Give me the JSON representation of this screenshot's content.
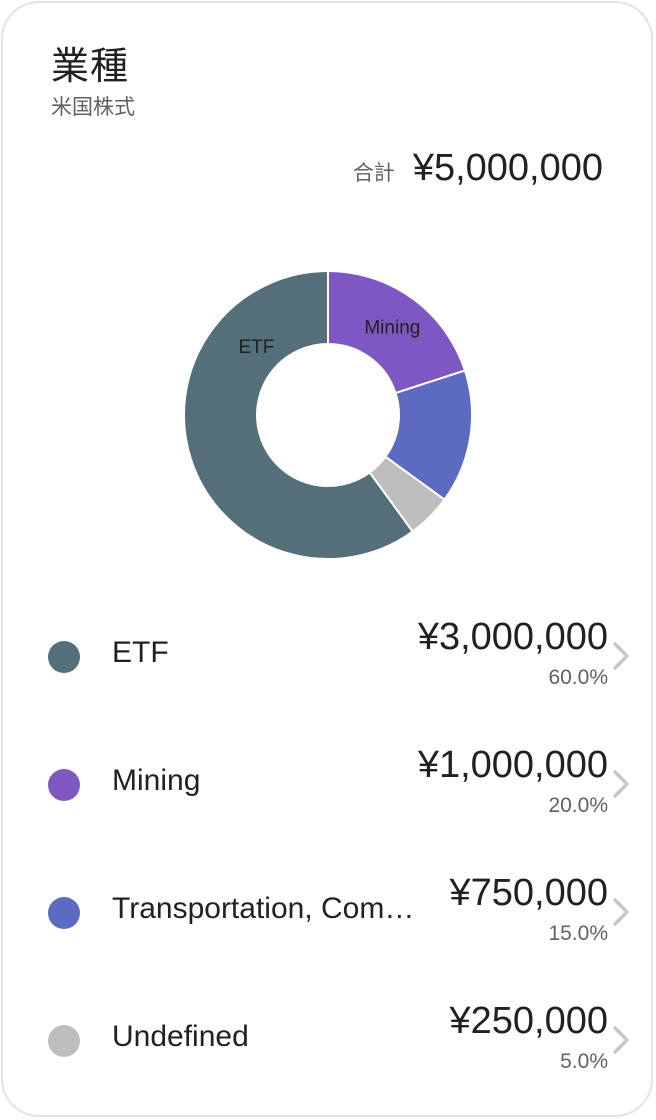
{
  "card": {
    "title": "業種",
    "subtitle": "米国株式",
    "total_label": "合計",
    "total_value": "¥5,000,000"
  },
  "chart_data": {
    "type": "pie",
    "variant": "donut",
    "slices": [
      {
        "label": "ETF",
        "value": 60.0,
        "color": "#546E7A",
        "show_label": true
      },
      {
        "label": "Mining",
        "value": 20.0,
        "color": "#7E57C2",
        "show_label": true
      },
      {
        "label": "Transportation, Com...",
        "value": 15.0,
        "color": "#5C6BC0",
        "show_label": false
      },
      {
        "label": "Undefined",
        "value": 5.0,
        "color": "#BDBDBD",
        "show_label": false
      }
    ]
  },
  "legend": [
    {
      "name": "ETF",
      "amount": "¥3,000,000",
      "percent": "60.0%",
      "color": "#546E7A"
    },
    {
      "name": "Mining",
      "amount": "¥1,000,000",
      "percent": "20.0%",
      "color": "#7E57C2"
    },
    {
      "name": "Transportation, Com…",
      "amount": "¥750,000",
      "percent": "15.0%",
      "color": "#5C6BC0"
    },
    {
      "name": "Undefined",
      "amount": "¥250,000",
      "percent": "5.0%",
      "color": "#BDBDBD"
    }
  ],
  "icons": {
    "row_action": "chevron-right-icon"
  }
}
